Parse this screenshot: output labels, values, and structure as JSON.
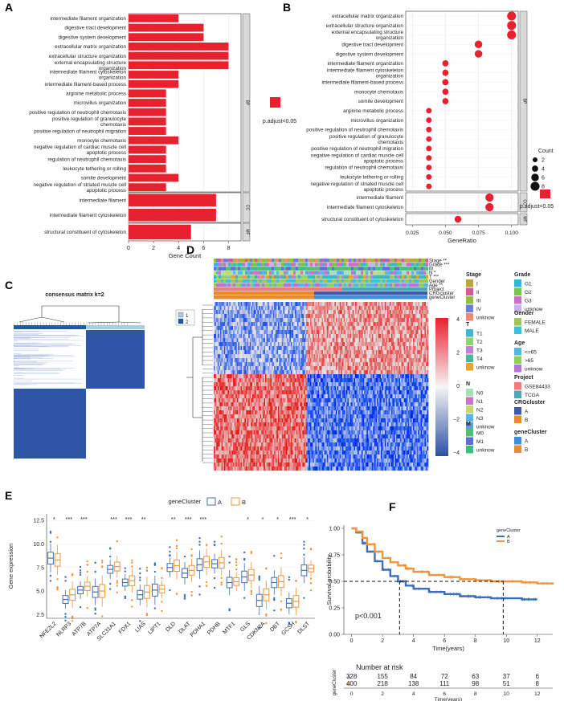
{
  "panels": {
    "A": "A",
    "B": "B",
    "C": "C",
    "D": "D",
    "E": "E",
    "F": "F"
  },
  "chart_data": [
    {
      "id": "A",
      "type": "bar",
      "orientation": "horizontal",
      "xlabel": "Gene Count",
      "xlim": [
        0,
        9
      ],
      "xticks": [
        "0",
        "2",
        "4",
        "6",
        "8"
      ],
      "groups": [
        {
          "name": "BP",
          "categories": [
            "intermediate filament organization",
            "digestive tract development",
            "digestive system development",
            "extracellular matrix organization",
            "extracellular structure organization",
            "external encapsulating structure organization",
            "intermediate filament cytoskeleton organization",
            "intermediate filament-based process",
            "arginine metabolic process",
            "microvillus organization",
            "positive regulation of neutrophil chemotaxis",
            "positive regulation of granulocyte chemotaxis",
            "positive regulation of neutrophil migration",
            "monocyte chemotaxis",
            "negative regulation of cardiac muscle cell apoptotic process",
            "regulation of neutrophil chemotaxis",
            "leukocyte tethering or rolling",
            "somite development",
            "negative regulation of striated muscle cell apoptotic process"
          ],
          "values": [
            4,
            6,
            6,
            8,
            8,
            8,
            4,
            4,
            3,
            3,
            3,
            3,
            3,
            4,
            3,
            3,
            3,
            4,
            3
          ]
        },
        {
          "name": "CC",
          "categories": [
            "intermediate filament",
            "intermediate filament cytoskeleton"
          ],
          "values": [
            7,
            7
          ]
        },
        {
          "name": "MF",
          "categories": [
            "structural constituent of cytoskeleton"
          ],
          "values": [
            5
          ]
        }
      ],
      "legend": {
        "label": "p.adjust<0.05",
        "color": "#e8212e"
      }
    },
    {
      "id": "B",
      "type": "scatter",
      "xlabel": "GeneRatio",
      "xlim": [
        0.02,
        0.105
      ],
      "xticks": [
        "0.025",
        "0.050",
        "0.075",
        "0.100"
      ],
      "groups": [
        {
          "name": "BP",
          "categories": [
            "extracellular matrix organization",
            "extracellular structure organization",
            "external encapsulating structure organization",
            "digestive tract development",
            "digestive system development",
            "intermediate filament organization",
            "intermediate filament cytoskeleton organization",
            "intermediate filament-based process",
            "monocyte chemotaxis",
            "somite development",
            "arginine metabolic process",
            "microvillus organization",
            "positive regulation of neutrophil chemotaxis",
            "positive regulation of granulocyte chemotaxis",
            "positive regulation of neutrophil migration",
            "negative regulation of cardiac muscle cell apoptotic process",
            "regulation of neutrophil chemotaxis",
            "leukocyte tethering or rolling",
            "negative regulation of striated muscle cell apoptotic process"
          ],
          "values": [
            0.1,
            0.1,
            0.1,
            0.075,
            0.075,
            0.05,
            0.05,
            0.05,
            0.05,
            0.05,
            0.0375,
            0.0375,
            0.0375,
            0.0375,
            0.0375,
            0.0375,
            0.0375,
            0.0375,
            0.0375
          ],
          "counts": [
            8,
            8,
            8,
            6,
            6,
            4,
            4,
            4,
            4,
            4,
            3,
            3,
            3,
            3,
            3,
            3,
            3,
            3,
            3
          ]
        },
        {
          "name": "CC",
          "categories": [
            "intermediate filament",
            "intermediate filament cytoskeleton"
          ],
          "values": [
            0.0833,
            0.0833
          ],
          "counts": [
            7,
            7
          ]
        },
        {
          "name": "MF",
          "categories": [
            "structural constituent of cytoskeleton"
          ],
          "values": [
            0.0595
          ],
          "counts": [
            5
          ]
        }
      ],
      "size_legend": {
        "title": "Count",
        "values": [
          "2",
          "4",
          "6",
          "8"
        ]
      },
      "legend": {
        "label": "p.adjust<0.05",
        "color": "#e8212e"
      }
    },
    {
      "id": "C",
      "type": "heatmap",
      "title": "consensus matrix k=2",
      "legend": [
        "1",
        "2"
      ],
      "colors": {
        "1": "#a6cee3",
        "2": "#1f5aa6"
      }
    },
    {
      "id": "D",
      "type": "heatmap",
      "annotation_rows": [
        "Stage **",
        "Grade ***",
        "M",
        "N *",
        "T ***",
        "Gender",
        "Age **",
        "Project",
        "CRGcluster",
        "geneCluster"
      ],
      "colorbar": {
        "ticks": [
          "4",
          "2",
          "0",
          "−2",
          "−4"
        ]
      },
      "legends": [
        {
          "title": "Stage",
          "items": [
            [
              "I",
              "#b8a83a"
            ],
            [
              "II",
              "#d35a9e"
            ],
            [
              "III",
              "#8fbf3f"
            ],
            [
              "IV",
              "#6b7ed9"
            ],
            [
              "unknow",
              "#f08a70"
            ]
          ]
        },
        {
          "title": "T",
          "items": [
            [
              "T1",
              "#3db6d2"
            ],
            [
              "T2",
              "#8fd36c"
            ],
            [
              "T3",
              "#c77dd9"
            ],
            [
              "T4",
              "#49b59a"
            ],
            [
              "unknow",
              "#e7a23a"
            ]
          ]
        },
        {
          "title": "N",
          "items": [
            [
              "N0",
              "#a6e0b8"
            ],
            [
              "N1",
              "#cf72c6"
            ],
            [
              "N2",
              "#c4d86b"
            ],
            [
              "N3",
              "#58b5e8"
            ],
            [
              "unknow",
              "#5e9edb"
            ]
          ]
        },
        {
          "title": "M",
          "items": [
            [
              "M0",
              "#4fc06f"
            ],
            [
              "M1",
              "#5c6fd6"
            ],
            [
              "unknow",
              "#3dbd82"
            ]
          ]
        },
        {
          "title": "Grade",
          "items": [
            [
              "G1",
              "#35b8d6"
            ],
            [
              "G2",
              "#76c64a"
            ],
            [
              "G3",
              "#cd6fc4"
            ],
            [
              "unknow",
              "#c9b2e8"
            ]
          ]
        },
        {
          "title": "Gender",
          "items": [
            [
              "FEMALE",
              "#a2c25a"
            ],
            [
              "MALE",
              "#3fc0d9"
            ]
          ]
        },
        {
          "title": "Age",
          "items": [
            [
              "<=65",
              "#54b8e4"
            ],
            [
              ">65",
              "#8fcf58"
            ],
            [
              "unknow",
              "#b774d6"
            ]
          ]
        },
        {
          "title": "Project",
          "items": [
            [
              "GSE84433",
              "#f07b7b"
            ],
            [
              "TCGA",
              "#4aa8b8"
            ]
          ]
        },
        {
          "title": "CRGcluster",
          "items": [
            [
              "A",
              "#3f5aa8"
            ],
            [
              "B",
              "#e78b31"
            ]
          ]
        },
        {
          "title": "geneCluster",
          "items": [
            [
              "A",
              "#3f8fd6"
            ],
            [
              "B",
              "#e78b31"
            ]
          ]
        }
      ]
    },
    {
      "id": "E",
      "type": "box",
      "legend_title": "geneCluster",
      "series": [
        {
          "name": "A",
          "color": "#3d6fb6"
        },
        {
          "name": "B",
          "color": "#f0953a"
        }
      ],
      "ylabel": "Gene expression",
      "ylim": [
        2.1,
        13.2
      ],
      "yticks": [
        "2.5",
        "5.0",
        "7.5",
        "10.0",
        "12.5"
      ],
      "categories": [
        "NFE2L2",
        "NLRP3",
        "ATP7B",
        "ATP7A",
        "SLC31A1",
        "FDX1",
        "LIAS",
        "LIPT1",
        "DLD",
        "DLAT",
        "PDHA1",
        "PDHB",
        "MTF1",
        "GLS",
        "CDKN2A",
        "DBT",
        "GCSH",
        "DLST"
      ],
      "signif": [
        "*",
        "***",
        "***",
        "",
        "***",
        "***",
        "**",
        "",
        "**",
        "***",
        "***",
        "",
        "",
        "*",
        "*",
        "*",
        "***",
        "*"
      ],
      "medians_A": [
        8.5,
        4.1,
        5.1,
        4.9,
        7.3,
        5.9,
        4.6,
        5.1,
        7.5,
        6.9,
        7.8,
        7.9,
        5.9,
        6.5,
        4.0,
        5.9,
        3.7,
        7.2
      ],
      "medians_B": [
        8.3,
        4.6,
        5.5,
        5.0,
        7.6,
        6.1,
        4.9,
        5.2,
        7.7,
        7.2,
        8.1,
        8.0,
        6.0,
        6.7,
        4.6,
        6.0,
        3.9,
        7.4
      ]
    },
    {
      "id": "F",
      "type": "line",
      "legend_title": "geneCluster",
      "series": [
        {
          "name": "A",
          "color": "#3d6fb6",
          "x": [
            0,
            0.3,
            0.7,
            1,
            1.5,
            2,
            2.5,
            3,
            3.5,
            4,
            5,
            6,
            7,
            8,
            9,
            10,
            11,
            12
          ],
          "y": [
            1,
            0.96,
            0.86,
            0.78,
            0.69,
            0.61,
            0.55,
            0.5,
            0.46,
            0.43,
            0.4,
            0.38,
            0.36,
            0.35,
            0.34,
            0.34,
            0.33,
            0.33
          ]
        },
        {
          "name": "B",
          "color": "#f0953a",
          "x": [
            0,
            0.3,
            0.7,
            1,
            1.5,
            2,
            2.5,
            3,
            3.5,
            4,
            5,
            6,
            7,
            8,
            9,
            10,
            11,
            12,
            13
          ],
          "y": [
            1,
            0.97,
            0.91,
            0.85,
            0.78,
            0.72,
            0.68,
            0.65,
            0.62,
            0.59,
            0.56,
            0.54,
            0.52,
            0.51,
            0.5,
            0.5,
            0.49,
            0.48,
            0.47
          ]
        }
      ],
      "xlabel": "Time(years)",
      "ylabel": "Survival probability",
      "xlim": [
        -0.5,
        13
      ],
      "ylim": [
        0,
        1.03
      ],
      "xticks": [
        "0",
        "2",
        "4",
        "6",
        "8",
        "10",
        "12"
      ],
      "yticks": [
        "0.00",
        "0.25",
        "0.50",
        "0.75",
        "1.00"
      ],
      "pvalue": "p<0.001",
      "risk_table": {
        "title": "Number at risk",
        "ylabel": "geneCluster",
        "A": [
          "328",
          "155",
          "84",
          "72",
          "63",
          "37",
          "6"
        ],
        "B": [
          "400",
          "218",
          "138",
          "111",
          "98",
          "51",
          "8"
        ]
      }
    }
  ]
}
